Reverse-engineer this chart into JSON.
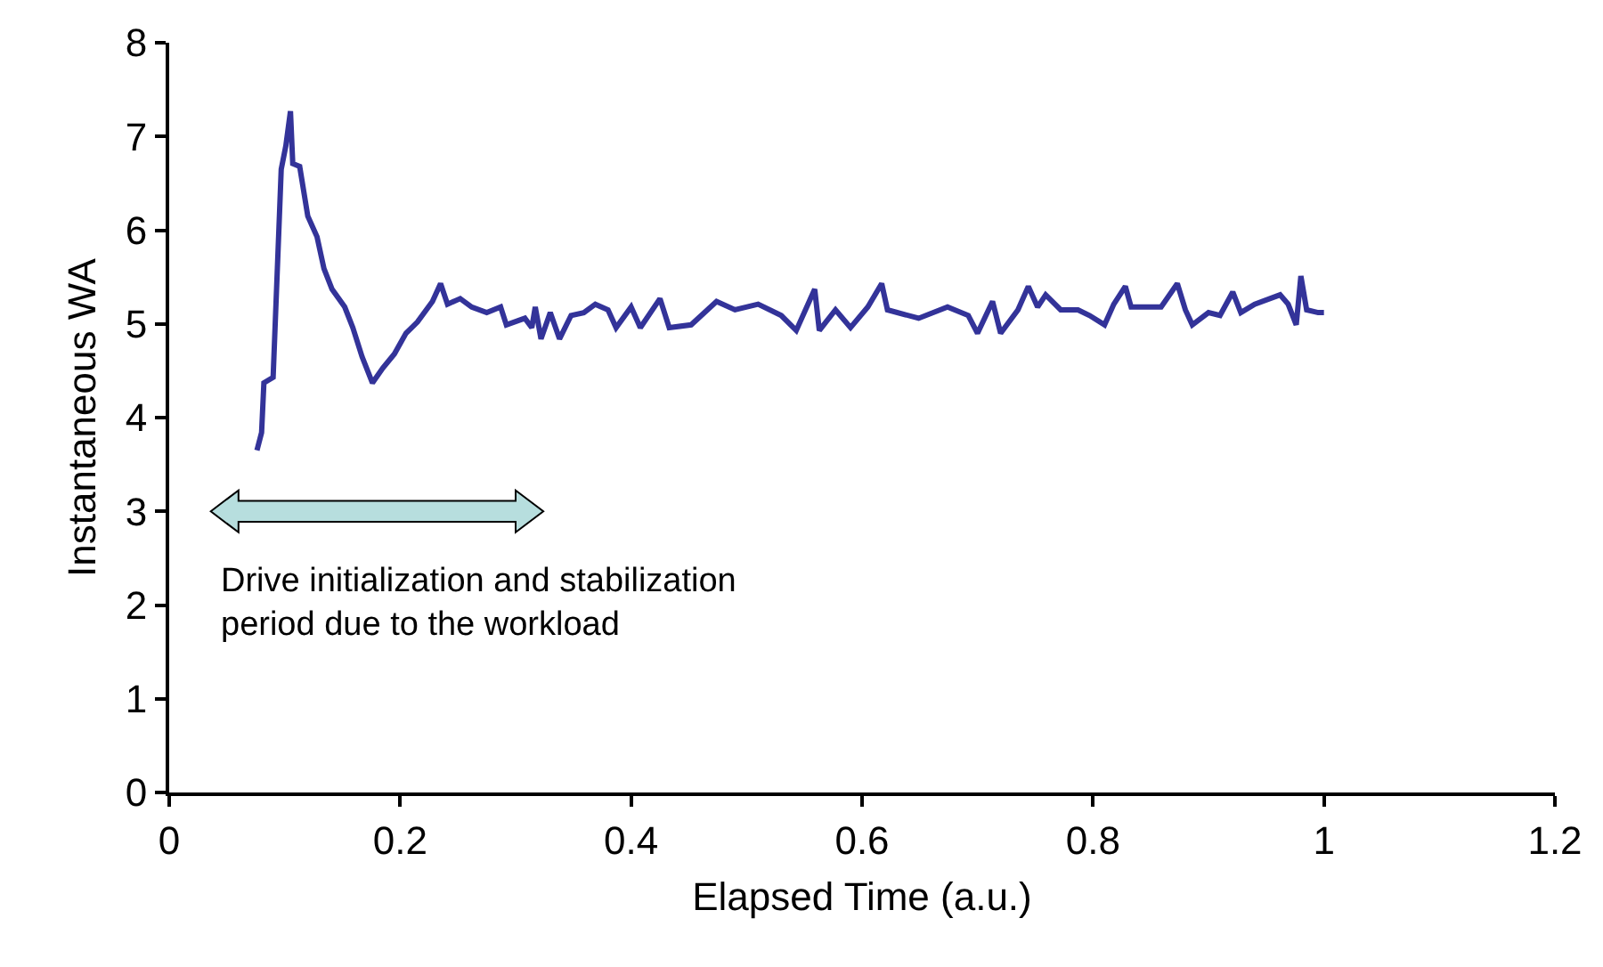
{
  "chart_data": {
    "type": "line",
    "xlabel": "Elapsed Time (a.u.)",
    "ylabel": "Instantaneous WA",
    "x": [
      0.076,
      0.08,
      0.082,
      0.09,
      0.097,
      0.101,
      0.105,
      0.107,
      0.113,
      0.12,
      0.128,
      0.134,
      0.141,
      0.152,
      0.159,
      0.167,
      0.176,
      0.185,
      0.195,
      0.205,
      0.215,
      0.228,
      0.235,
      0.241,
      0.252,
      0.262,
      0.275,
      0.287,
      0.292,
      0.308,
      0.314,
      0.317,
      0.322,
      0.33,
      0.338,
      0.348,
      0.359,
      0.369,
      0.38,
      0.387,
      0.4,
      0.408,
      0.425,
      0.433,
      0.452,
      0.474,
      0.49,
      0.51,
      0.53,
      0.543,
      0.559,
      0.563,
      0.577,
      0.59,
      0.605,
      0.617,
      0.622,
      0.649,
      0.674,
      0.692,
      0.7,
      0.713,
      0.72,
      0.735,
      0.744,
      0.752,
      0.759,
      0.772,
      0.787,
      0.797,
      0.81,
      0.818,
      0.828,
      0.833,
      0.859,
      0.873,
      0.88,
      0.886,
      0.9,
      0.91,
      0.921,
      0.928,
      0.94,
      0.962,
      0.969,
      0.976,
      0.98,
      0.985,
      0.995,
      1.0
    ],
    "values": [
      3.65,
      3.84,
      4.37,
      4.43,
      6.65,
      6.9,
      7.27,
      6.71,
      6.68,
      6.15,
      5.93,
      5.59,
      5.37,
      5.18,
      4.96,
      4.65,
      4.37,
      4.53,
      4.68,
      4.9,
      5.02,
      5.24,
      5.43,
      5.21,
      5.27,
      5.18,
      5.12,
      5.18,
      4.99,
      5.06,
      4.96,
      5.18,
      4.84,
      5.12,
      4.84,
      5.09,
      5.12,
      5.21,
      5.15,
      4.96,
      5.18,
      4.96,
      5.27,
      4.96,
      4.99,
      5.24,
      5.15,
      5.21,
      5.09,
      4.93,
      5.37,
      4.93,
      5.15,
      4.96,
      5.18,
      5.43,
      5.15,
      5.06,
      5.18,
      5.09,
      4.9,
      5.24,
      4.9,
      5.15,
      5.4,
      5.18,
      5.31,
      5.15,
      5.15,
      5.09,
      4.99,
      5.21,
      5.4,
      5.18,
      5.18,
      5.43,
      5.15,
      4.99,
      5.12,
      5.09,
      5.34,
      5.12,
      5.21,
      5.31,
      5.21,
      4.99,
      5.51,
      5.15,
      5.12,
      5.12
    ],
    "color": "#333399",
    "marker": "none",
    "line_style": "solid",
    "xlim": [
      0,
      1.2
    ],
    "xticks": [
      0,
      0.2,
      0.4,
      0.6,
      0.8,
      1,
      1.2
    ],
    "ylim": [
      0,
      8
    ],
    "yticks": [
      0,
      1,
      2,
      3,
      4,
      5,
      6,
      7,
      8
    ],
    "annotations": [
      "Drive initialization and stabilization\nperiod due to the workload"
    ]
  }
}
